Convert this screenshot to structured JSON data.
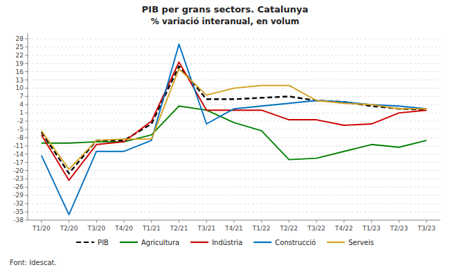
{
  "chart_data": {
    "type": "line",
    "title": "PIB per grans sectors. Catalunya",
    "subtitle": "% variació interanual, en volum",
    "source": "Font: Idescat.",
    "categories": [
      "T1/20",
      "T2/20",
      "T3/20",
      "T4/20",
      "T1/21",
      "T2/21",
      "T3/21",
      "T4/21",
      "T1/22",
      "T2/22",
      "T3/22",
      "T4/22",
      "T1/23",
      "T2/23",
      "T3/23"
    ],
    "series": [
      {
        "name": "PIB",
        "color": "#000000",
        "line_style": "dashed",
        "values": [
          -6.0,
          -21.0,
          -9.0,
          -9.0,
          -3.0,
          18.0,
          6.0,
          6.0,
          6.5,
          7.0,
          5.5,
          5.0,
          3.5,
          2.5,
          2.1
        ]
      },
      {
        "name": "Agricultura",
        "color": "#008000",
        "line_style": "solid",
        "values": [
          -10.0,
          -10.0,
          -9.5,
          -9.5,
          -7.0,
          3.5,
          2.0,
          -2.5,
          -5.5,
          -16.0,
          -15.5,
          -13.0,
          -10.5,
          -11.5,
          -9.0
        ]
      },
      {
        "name": "Indústria",
        "color": "#cc0000",
        "line_style": "solid",
        "values": [
          -7.0,
          -23.5,
          -10.5,
          -9.5,
          -2.0,
          19.5,
          2.0,
          2.0,
          2.0,
          -1.5,
          -1.5,
          -3.5,
          -3.0,
          1.0,
          2.0
        ]
      },
      {
        "name": "Construcció",
        "color": "#0070c0",
        "line_style": "solid",
        "values": [
          -14.5,
          -36.0,
          -13.0,
          -13.0,
          -9.0,
          26.0,
          -3.0,
          2.5,
          3.5,
          4.5,
          5.5,
          5.0,
          4.0,
          3.5,
          2.5
        ]
      },
      {
        "name": "Serveis",
        "color": "#d4a020",
        "line_style": "solid",
        "values": [
          -5.5,
          -19.5,
          -9.0,
          -8.5,
          -8.5,
          17.0,
          7.5,
          10.0,
          11.0,
          11.0,
          5.5,
          4.5,
          4.0,
          2.5,
          2.5
        ]
      }
    ],
    "ylim": [
      -38,
      30
    ],
    "yticks": [
      28,
      25,
      22,
      19,
      16,
      13,
      10,
      7,
      4,
      1,
      -2,
      -5,
      -8,
      -11,
      -14,
      -17,
      -20,
      -23,
      -26,
      -29,
      -32,
      -35,
      -38
    ],
    "grid": true,
    "legend": "bottom"
  }
}
